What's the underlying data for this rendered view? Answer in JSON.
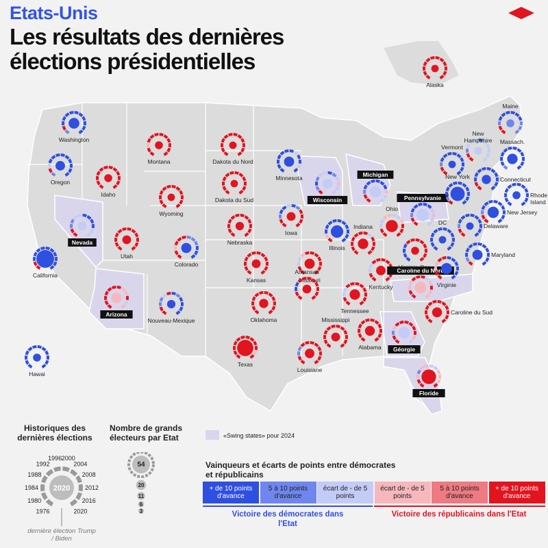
{
  "header": {
    "kicker": "Etats-Unis",
    "title_line1": "Les résultats des dernières",
    "title_line2": "élections présidentielles"
  },
  "colors": {
    "dem_strong": "#2f4fe0",
    "dem_mid": "#6f86ee",
    "dem_light": "#c3ccf7",
    "rep_light": "#f6b8bd",
    "rep_mid": "#ee7a82",
    "rep_strong": "#e2141f",
    "swing": "#d9d6ec",
    "land": "#dcdcdc"
  },
  "states": [
    {
      "name": "Alaska",
      "swing": false,
      "ev": 3,
      "seq": "RRRRRRRRRRRR"
    },
    {
      "name": "Washington",
      "swing": false,
      "ev": 12,
      "seq": "MRDDDDDDDDDD"
    },
    {
      "name": "Oregon",
      "swing": false,
      "ev": 8,
      "seq": "MRLDDDDDDDDD"
    },
    {
      "name": "California",
      "swing": false,
      "ev": 54,
      "seq": "RRDDDDDDDDDD"
    },
    {
      "name": "Hawai",
      "swing": false,
      "ev": 4,
      "seq": "DDDDDDDDDDDD"
    },
    {
      "name": "Idaho",
      "swing": false,
      "ev": 4,
      "seq": "RRRRRRRRRRRR"
    },
    {
      "name": "Montana",
      "swing": false,
      "ev": 4,
      "seq": "RRPRRRRRRRRR"
    },
    {
      "name": "Wyoming",
      "swing": false,
      "ev": 3,
      "seq": "RRRRRRRRRRRR"
    },
    {
      "name": "Nevada",
      "swing": true,
      "ev": 6,
      "seq": "RRMMLLDDDDLL"
    },
    {
      "name": "Utah",
      "swing": false,
      "ev": 6,
      "seq": "RRRRRRRRRRRR"
    },
    {
      "name": "Colorado",
      "swing": false,
      "ev": 10,
      "seq": "RRPRRRMMMDDD"
    },
    {
      "name": "Arizona",
      "swing": true,
      "ev": 11,
      "seq": "RRRRRRRPPRLP"
    },
    {
      "name": "Nouveau-Mexique",
      "swing": false,
      "ev": 5,
      "seq": "RRMMLRDMDDDD"
    },
    {
      "name": "Dakota du Nord",
      "swing": false,
      "ev": 3,
      "seq": "RRRRRRRRRRRR"
    },
    {
      "name": "Dakota du Sud",
      "swing": false,
      "ev": 3,
      "seq": "RRRRRRRRRRRR"
    },
    {
      "name": "Nebraska",
      "swing": false,
      "ev": 5,
      "seq": "RRRRRRRRRRRR"
    },
    {
      "name": "Kansas",
      "swing": false,
      "ev": 6,
      "seq": "RRRRRRRRRRRR"
    },
    {
      "name": "Oklahoma",
      "swing": false,
      "ev": 7,
      "seq": "RRRRRRRRRRRR"
    },
    {
      "name": "Texas",
      "swing": false,
      "ev": 40,
      "seq": "RRRRRRRRRRPR"
    },
    {
      "name": "Minnesota",
      "swing": false,
      "ev": 10,
      "seq": "DDDDDDDLDDLD"
    },
    {
      "name": "Iowa",
      "swing": false,
      "ev": 6,
      "seq": "RRMDDLDMRRRR"
    },
    {
      "name": "Missouri",
      "swing": false,
      "ev": 10,
      "seq": "RRLLPRRRRRRR"
    },
    {
      "name": "Arkansas",
      "swing": false,
      "ev": 6,
      "seq": "RRDDRRRRRRRR"
    },
    {
      "name": "Louisiane",
      "swing": false,
      "ev": 8,
      "seq": "RRMMRRRRRRRR"
    },
    {
      "name": "Wisconsin",
      "swing": true,
      "ev": 10,
      "seq": "RMDMLLDMLPLL"
    },
    {
      "name": "Illinois",
      "swing": false,
      "ev": 19,
      "seq": "RPDDDDDDDDDD"
    },
    {
      "name": "Michigan",
      "swing": true,
      "ev": 15,
      "seq": "RRMDDDDDDPLL"
    },
    {
      "name": "Indiana",
      "swing": false,
      "ev": 11,
      "seq": "RRRRRRRLRRRR"
    },
    {
      "name": "Ohio",
      "swing": false,
      "ev": 17,
      "seq": "RRLLPPLLPRRR"
    },
    {
      "name": "Kentucky",
      "swing": false,
      "ev": 8,
      "seq": "RRLLRRRRRRRR"
    },
    {
      "name": "Tennessee",
      "swing": false,
      "ev": 11,
      "seq": "RRLLRRRRRRRR"
    },
    {
      "name": "Mississippi",
      "swing": false,
      "ev": 6,
      "seq": "RRRRRRRRRRRR"
    },
    {
      "name": "Alabama",
      "swing": false,
      "ev": 9,
      "seq": "RRRRRRRRRRRR"
    },
    {
      "name": "Géorgie",
      "swing": true,
      "ev": 16,
      "seq": "RRMPRRRRRRPL"
    },
    {
      "name": "Floride",
      "swing": true,
      "ev": 30,
      "seq": "RRPMPPLLPPPR"
    },
    {
      "name": "Caroline du Sud",
      "swing": false,
      "ev": 9,
      "seq": "RRRRRRRRRRRR"
    },
    {
      "name": "Caroline du Nord",
      "swing": true,
      "ev": 16,
      "seq": "RRPPRRRLPRPP"
    },
    {
      "name": "Virginie",
      "swing": false,
      "ev": 13,
      "seq": "RRPPRRDDDDDD"
    },
    {
      "name": "Virginie-Occ.",
      "swing": false,
      "ev": 4,
      "seq": "DDDDRRRRRRRR"
    },
    {
      "name": "Pennsylvanie",
      "swing": true,
      "ev": 19,
      "seq": "RRMDDDDDLPLL"
    },
    {
      "name": "New York",
      "swing": false,
      "ev": 28,
      "seq": "RMDDDDDDDDDD"
    },
    {
      "name": "Vermont",
      "swing": false,
      "ev": 3,
      "seq": "RRMDDDDDDDDD"
    },
    {
      "name": "New Hampshire",
      "swing": false,
      "ev": 4,
      "seq": "RRMLLLDLLLLL"
    },
    {
      "name": "Maine",
      "swing": false,
      "ev": 4,
      "seq": "RRMDDDDDDMMM"
    },
    {
      "name": "Massach.",
      "swing": false,
      "ev": 11,
      "seq": "MDDDDDDDDDDD"
    },
    {
      "name": "Connecticut",
      "swing": false,
      "ev": 7,
      "seq": "RRDDDDDDDDDD"
    },
    {
      "name": "Rhode Island",
      "swing": false,
      "ev": 4,
      "seq": "DDDDDDDDDDDD"
    },
    {
      "name": "New Jersey",
      "swing": false,
      "ev": 14,
      "seq": "RRMDDDDDDDDD"
    },
    {
      "name": "Delaware",
      "swing": false,
      "ev": 3,
      "seq": "RRMDDDDDDDDD"
    },
    {
      "name": "Maryland",
      "swing": false,
      "ev": 10,
      "seq": "RMDDDDDDDDDD"
    },
    {
      "name": "DC",
      "swing": false,
      "ev": 3,
      "seq": "DDDDDDDDDDDD"
    }
  ],
  "legend": {
    "history_title": "Historiques des dernières élections",
    "years": [
      "1976",
      "1980",
      "1984",
      "1988",
      "1992",
      "1996",
      "2000",
      "2004",
      "2008",
      "2012",
      "2016",
      "2020"
    ],
    "center_year": "2020",
    "last_note": "dernière élection Trump / Biden",
    "ev_title": "Nombre de grands électeurs par Etat",
    "ev_values": [
      "54",
      "20",
      "11",
      "6",
      "3"
    ],
    "swing_label": "«Swing states» pour 2024",
    "winners_title": "Vainqueurs et écarts de points entre démocrates et républicains",
    "boxes": [
      "+ de 10 points d'avance",
      "5 à 10 points d'avance",
      "écart de - de 5 points",
      "écart de - de 5 points",
      "5 à 10 points d'avance",
      "+ de 10 points d'avance"
    ],
    "dem_caption": "Victoire des démocrates dans l'Etat",
    "rep_caption": "Victoire des républicains dans l'Etat"
  }
}
